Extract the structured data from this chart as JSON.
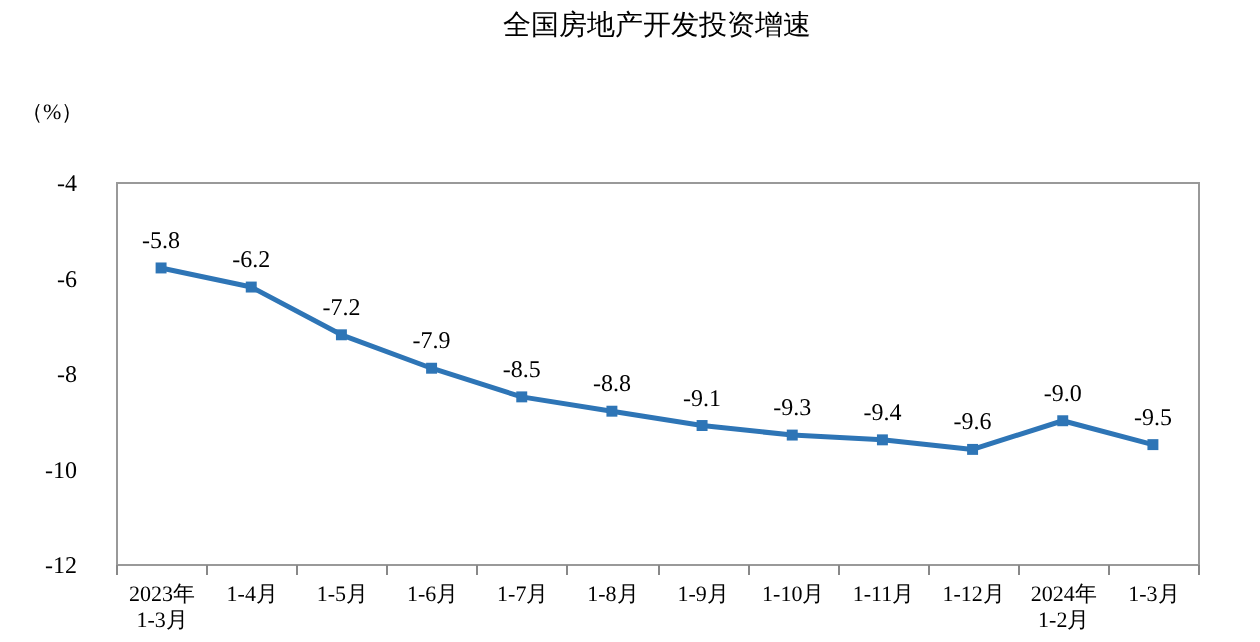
{
  "chart_data": {
    "type": "line",
    "title": "全国房地产开发投资增速",
    "ylabel": "（%）",
    "categories": [
      "2023年\n1-3月",
      "1-4月",
      "1-5月",
      "1-6月",
      "1-7月",
      "1-8月",
      "1-9月",
      "1-10月",
      "1-11月",
      "1-12月",
      "2024年\n1-2月",
      "1-3月"
    ],
    "series": [
      {
        "color": "#2e75b6",
        "values": [
          -5.8,
          -6.2,
          -7.2,
          -7.9,
          -8.5,
          -8.8,
          -9.1,
          -9.3,
          -9.4,
          -9.6,
          -9.0,
          -9.5
        ],
        "value_labels": [
          "-5.8",
          "-6.2",
          "-7.2",
          "-7.9",
          "-8.5",
          "-8.8",
          "-9.1",
          "-9.3",
          "-9.4",
          "-9.6",
          "-9.0",
          "-9.5"
        ]
      }
    ],
    "ylim": [
      -12,
      -4
    ],
    "yticks": [
      -4,
      -6,
      -8,
      -10,
      -12
    ],
    "marker": "square",
    "line_style": "solid"
  }
}
